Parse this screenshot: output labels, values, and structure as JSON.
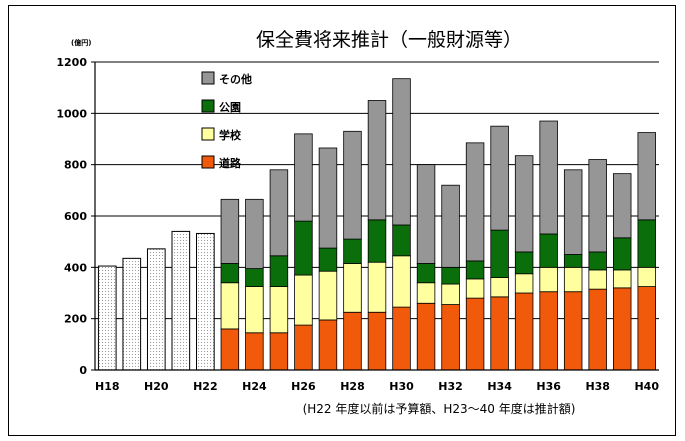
{
  "chart_data": {
    "type": "bar",
    "stacked": true,
    "title": "保全費将来推計（一般財源等）",
    "unit": "(億円)",
    "note": "(H22 年度以前は予算額、H23～40 年度は推計額)",
    "ylim": [
      0,
      1200
    ],
    "yticks": [
      0,
      200,
      400,
      600,
      800,
      1000,
      1200
    ],
    "grid": true,
    "legend_position": "top-left",
    "categories": [
      "H18",
      "H19",
      "H20",
      "H21",
      "H22",
      "H23",
      "H24",
      "H25",
      "H26",
      "H27",
      "H28",
      "H29",
      "H30",
      "H31",
      "H32",
      "H33",
      "H34",
      "H35",
      "H36",
      "H37",
      "H38",
      "H39",
      "H40"
    ],
    "xtick_labels": [
      "H18",
      "H20",
      "H22",
      "H24",
      "H26",
      "H28",
      "H30",
      "H32",
      "H34",
      "H36",
      "H38",
      "H40"
    ],
    "budget_values": [
      405,
      435,
      472,
      540,
      532,
      null,
      null,
      null,
      null,
      null,
      null,
      null,
      null,
      null,
      null,
      null,
      null,
      null,
      null,
      null,
      null,
      null,
      null
    ],
    "series": [
      {
        "name": "道路",
        "color": "#f05a0a",
        "values": [
          null,
          null,
          null,
          null,
          null,
          160,
          145,
          145,
          175,
          195,
          225,
          225,
          245,
          260,
          255,
          280,
          285,
          300,
          305,
          305,
          315,
          320,
          325
        ]
      },
      {
        "name": "学校",
        "color": "#ffffa0",
        "values": [
          null,
          null,
          null,
          null,
          null,
          180,
          180,
          180,
          195,
          190,
          190,
          195,
          200,
          80,
          80,
          75,
          75,
          75,
          95,
          95,
          75,
          70,
          75
        ]
      },
      {
        "name": "公園",
        "color": "#0a6e0a",
        "values": [
          null,
          null,
          null,
          null,
          null,
          75,
          70,
          120,
          210,
          90,
          95,
          165,
          120,
          75,
          65,
          70,
          185,
          85,
          130,
          50,
          70,
          125,
          185
        ]
      },
      {
        "name": "その他",
        "color": "#969696",
        "values": [
          null,
          null,
          null,
          null,
          null,
          250,
          270,
          335,
          340,
          390,
          420,
          465,
          570,
          385,
          320,
          460,
          405,
          375,
          440,
          330,
          360,
          250,
          340
        ]
      }
    ]
  }
}
